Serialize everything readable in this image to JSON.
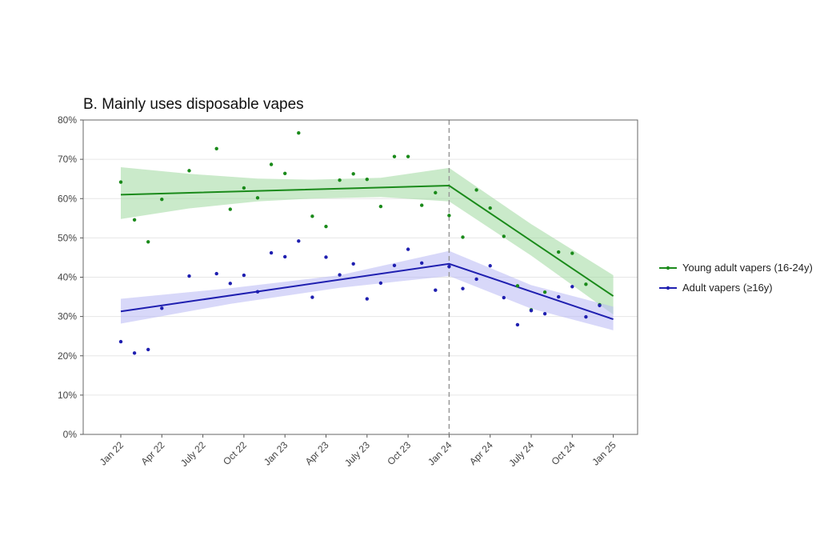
{
  "chart_data": {
    "type": "line",
    "title": "B. Mainly uses disposable vapes",
    "xlabel": "",
    "ylabel": "",
    "ylim": [
      0,
      80
    ],
    "y_ticks": [
      "0%",
      "10%",
      "20%",
      "30%",
      "40%",
      "50%",
      "60%",
      "70%",
      "80%"
    ],
    "x_ticks": [
      "Jan 22",
      "Apr 22",
      "July 22",
      "Oct 22",
      "Jan 23",
      "Apr 23",
      "July 23",
      "Oct 23",
      "Jan 24",
      "Apr 24",
      "July 24",
      "Oct 24",
      "Jan 25"
    ],
    "reference_line": {
      "at": "Jan 24",
      "style": "dashed"
    },
    "grid": true,
    "legend_position": "right",
    "series": [
      {
        "name": "Young adult vapers (16-24y)",
        "color": "#1a8a1a",
        "band_color": "#9fd89f",
        "points": [
          64.2,
          54.6,
          49.0,
          59.8,
          null,
          67.1,
          null,
          72.7,
          57.3,
          62.7,
          60.2,
          68.7,
          66.4,
          76.7,
          55.5,
          52.9,
          64.7,
          66.3,
          64.9,
          58.0,
          70.7,
          70.7,
          58.3,
          61.5,
          55.7,
          50.2,
          62.2,
          57.6,
          50.4,
          37.8,
          31.7,
          36.2,
          46.4,
          46.1,
          38.2,
          33.0
        ],
        "trend": [
          [
            0,
            61.0
          ],
          [
            24,
            63.3
          ],
          [
            36,
            35.2
          ]
        ],
        "band_upper": [
          [
            0,
            68.0
          ],
          [
            5,
            66.3
          ],
          [
            10,
            65.1
          ],
          [
            14,
            64.8
          ],
          [
            19,
            65.3
          ],
          [
            24,
            67.8
          ],
          [
            30,
            53.5
          ],
          [
            36,
            40.5
          ]
        ],
        "band_lower": [
          [
            0,
            54.8
          ],
          [
            5,
            57.5
          ],
          [
            10,
            59.3
          ],
          [
            14,
            60.0
          ],
          [
            19,
            60.4
          ],
          [
            24,
            59.3
          ],
          [
            30,
            45.5
          ],
          [
            36,
            30.5
          ]
        ]
      },
      {
        "name": "Adult vapers (≥16y)",
        "color": "#1f1fb0",
        "band_color": "#b8b8f4",
        "points": [
          23.6,
          20.7,
          21.6,
          32.1,
          null,
          40.3,
          null,
          40.9,
          38.4,
          40.5,
          36.3,
          46.2,
          45.2,
          49.2,
          34.9,
          45.1,
          40.6,
          43.4,
          34.5,
          38.5,
          43.0,
          47.1,
          43.6,
          36.7,
          42.7,
          37.1,
          39.5,
          42.9,
          34.8,
          27.9,
          31.5,
          30.7,
          35.0,
          37.6,
          29.9,
          32.8
        ],
        "trend": [
          [
            0,
            31.3
          ],
          [
            24,
            43.4
          ],
          [
            36,
            29.3
          ]
        ],
        "band_upper": [
          [
            0,
            34.5
          ],
          [
            8,
            37.2
          ],
          [
            16,
            40.5
          ],
          [
            24,
            46.7
          ],
          [
            30,
            38.0
          ],
          [
            36,
            32.5
          ]
        ],
        "band_lower": [
          [
            0,
            28.2
          ],
          [
            8,
            33.2
          ],
          [
            16,
            37.3
          ],
          [
            24,
            40.3
          ],
          [
            30,
            32.0
          ],
          [
            36,
            26.5
          ]
        ]
      }
    ]
  }
}
